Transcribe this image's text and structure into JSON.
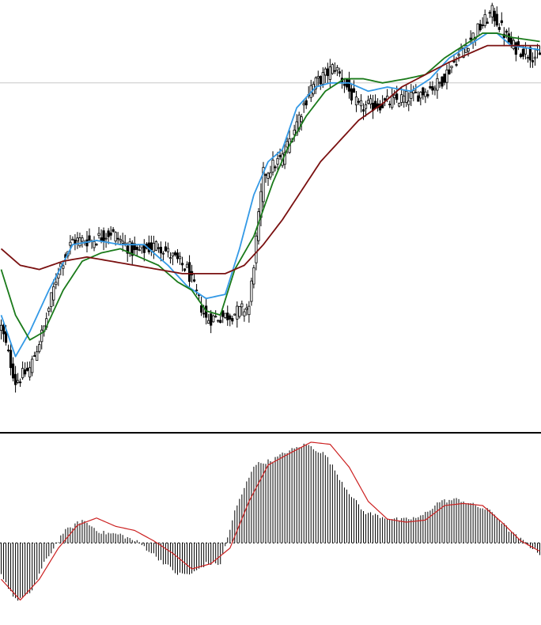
{
  "chart_data": [
    {
      "type": "candlestick",
      "panel": "price",
      "x": {
        "count": 227,
        "start_index": 0
      },
      "ylim": [
        0.8,
        11.2
      ],
      "grid": false,
      "reference_line": 9.2,
      "anchors": {
        "close": [
          [
            0,
            3.3
          ],
          [
            6,
            2.0
          ],
          [
            12,
            2.3
          ],
          [
            18,
            3.3
          ],
          [
            24,
            4.7
          ],
          [
            30,
            5.4
          ],
          [
            38,
            5.4
          ],
          [
            46,
            5.6
          ],
          [
            56,
            5.1
          ],
          [
            66,
            5.3
          ],
          [
            78,
            4.7
          ],
          [
            86,
            3.5
          ],
          [
            96,
            3.6
          ],
          [
            104,
            3.8
          ],
          [
            110,
            7.0
          ],
          [
            118,
            7.4
          ],
          [
            130,
            9.1
          ],
          [
            140,
            9.6
          ],
          [
            150,
            8.6
          ],
          [
            160,
            8.7
          ],
          [
            174,
            8.9
          ],
          [
            184,
            9.2
          ],
          [
            196,
            10.2
          ],
          [
            206,
            10.9
          ],
          [
            214,
            10.1
          ],
          [
            226,
            9.8
          ]
        ],
        "ema_fast": [
          [
            0,
            3.6
          ],
          [
            6,
            2.6
          ],
          [
            12,
            3.2
          ],
          [
            20,
            4.2
          ],
          [
            30,
            5.3
          ],
          [
            40,
            5.4
          ],
          [
            50,
            5.3
          ],
          [
            60,
            5.3
          ],
          [
            70,
            4.8
          ],
          [
            78,
            4.3
          ],
          [
            86,
            4.0
          ],
          [
            94,
            4.1
          ],
          [
            100,
            5.2
          ],
          [
            106,
            6.5
          ],
          [
            112,
            7.3
          ],
          [
            118,
            7.6
          ],
          [
            124,
            8.6
          ],
          [
            132,
            9.1
          ],
          [
            138,
            9.2
          ],
          [
            146,
            9.2
          ],
          [
            154,
            9.0
          ],
          [
            162,
            9.1
          ],
          [
            172,
            9.0
          ],
          [
            180,
            9.3
          ],
          [
            188,
            9.8
          ],
          [
            196,
            10.1
          ],
          [
            204,
            10.4
          ],
          [
            208,
            10.4
          ],
          [
            214,
            10.1
          ],
          [
            226,
            10.0
          ]
        ],
        "ema_mid": [
          [
            0,
            4.7
          ],
          [
            6,
            3.6
          ],
          [
            12,
            3.0
          ],
          [
            18,
            3.2
          ],
          [
            26,
            4.2
          ],
          [
            34,
            4.9
          ],
          [
            42,
            5.1
          ],
          [
            50,
            5.2
          ],
          [
            58,
            5.0
          ],
          [
            66,
            4.8
          ],
          [
            74,
            4.4
          ],
          [
            80,
            4.2
          ],
          [
            86,
            3.7
          ],
          [
            92,
            3.6
          ],
          [
            98,
            4.7
          ],
          [
            106,
            5.5
          ],
          [
            114,
            6.8
          ],
          [
            120,
            7.6
          ],
          [
            128,
            8.4
          ],
          [
            136,
            9.0
          ],
          [
            144,
            9.3
          ],
          [
            152,
            9.3
          ],
          [
            160,
            9.2
          ],
          [
            170,
            9.3
          ],
          [
            178,
            9.4
          ],
          [
            186,
            9.8
          ],
          [
            194,
            10.1
          ],
          [
            202,
            10.4
          ],
          [
            208,
            10.4
          ],
          [
            214,
            10.3
          ],
          [
            226,
            10.2
          ]
        ],
        "ema_slow": [
          [
            0,
            5.2
          ],
          [
            8,
            4.8
          ],
          [
            16,
            4.7
          ],
          [
            26,
            4.9
          ],
          [
            36,
            5.0
          ],
          [
            46,
            4.9
          ],
          [
            56,
            4.8
          ],
          [
            66,
            4.7
          ],
          [
            76,
            4.6
          ],
          [
            84,
            4.6
          ],
          [
            94,
            4.6
          ],
          [
            102,
            4.8
          ],
          [
            110,
            5.3
          ],
          [
            118,
            5.9
          ],
          [
            126,
            6.6
          ],
          [
            134,
            7.3
          ],
          [
            142,
            7.8
          ],
          [
            150,
            8.3
          ],
          [
            160,
            8.7
          ],
          [
            168,
            9.1
          ],
          [
            178,
            9.4
          ],
          [
            188,
            9.7
          ],
          [
            196,
            9.9
          ],
          [
            204,
            10.1
          ],
          [
            210,
            10.1
          ],
          [
            218,
            10.1
          ],
          [
            226,
            10.1
          ]
        ]
      },
      "series": [
        {
          "name": "",
          "kind": "ohlc",
          "color": "#000000"
        },
        {
          "name": "",
          "kind": "line",
          "key": "ema_fast",
          "color": "#3399e6"
        },
        {
          "name": "",
          "kind": "line",
          "key": "ema_mid",
          "color": "#1a7a1a"
        },
        {
          "name": "",
          "kind": "line",
          "key": "ema_slow",
          "color": "#7a1010"
        }
      ]
    },
    {
      "type": "histogram-line",
      "panel": "oscillator",
      "x": {
        "count": 227,
        "start_index": 0
      },
      "ylim": [
        -0.6,
        1.0
      ],
      "zero_line": 0,
      "anchors": {
        "histogram": [
          [
            0,
            -0.3
          ],
          [
            6,
            -0.55
          ],
          [
            12,
            -0.5
          ],
          [
            18,
            -0.2
          ],
          [
            26,
            0.1
          ],
          [
            34,
            0.22
          ],
          [
            42,
            0.1
          ],
          [
            50,
            0.08
          ],
          [
            58,
            0.0
          ],
          [
            66,
            -0.15
          ],
          [
            74,
            -0.3
          ],
          [
            80,
            -0.3
          ],
          [
            86,
            -0.2
          ],
          [
            92,
            -0.2
          ],
          [
            98,
            0.3
          ],
          [
            106,
            0.75
          ],
          [
            114,
            0.8
          ],
          [
            120,
            0.88
          ],
          [
            128,
            0.95
          ],
          [
            136,
            0.85
          ],
          [
            144,
            0.55
          ],
          [
            152,
            0.3
          ],
          [
            160,
            0.25
          ],
          [
            168,
            0.22
          ],
          [
            176,
            0.25
          ],
          [
            184,
            0.4
          ],
          [
            192,
            0.42
          ],
          [
            200,
            0.35
          ],
          [
            206,
            0.3
          ],
          [
            214,
            0.1
          ],
          [
            226,
            -0.1
          ]
        ],
        "signal": [
          [
            0,
            -0.35
          ],
          [
            8,
            -0.55
          ],
          [
            16,
            -0.35
          ],
          [
            24,
            -0.05
          ],
          [
            32,
            0.17
          ],
          [
            40,
            0.24
          ],
          [
            48,
            0.16
          ],
          [
            56,
            0.12
          ],
          [
            64,
            0.02
          ],
          [
            72,
            -0.1
          ],
          [
            80,
            -0.25
          ],
          [
            88,
            -0.2
          ],
          [
            96,
            -0.05
          ],
          [
            104,
            0.4
          ],
          [
            112,
            0.75
          ],
          [
            120,
            0.85
          ],
          [
            130,
            0.97
          ],
          [
            138,
            0.95
          ],
          [
            146,
            0.73
          ],
          [
            154,
            0.4
          ],
          [
            162,
            0.23
          ],
          [
            170,
            0.2
          ],
          [
            178,
            0.22
          ],
          [
            186,
            0.36
          ],
          [
            194,
            0.38
          ],
          [
            202,
            0.36
          ],
          [
            210,
            0.2
          ],
          [
            218,
            0.02
          ],
          [
            226,
            -0.08
          ]
        ]
      },
      "series": [
        {
          "name": "",
          "kind": "bars",
          "key": "histogram",
          "color": "#000000"
        },
        {
          "name": "",
          "kind": "line",
          "key": "signal",
          "color": "#cc2020"
        }
      ]
    }
  ]
}
